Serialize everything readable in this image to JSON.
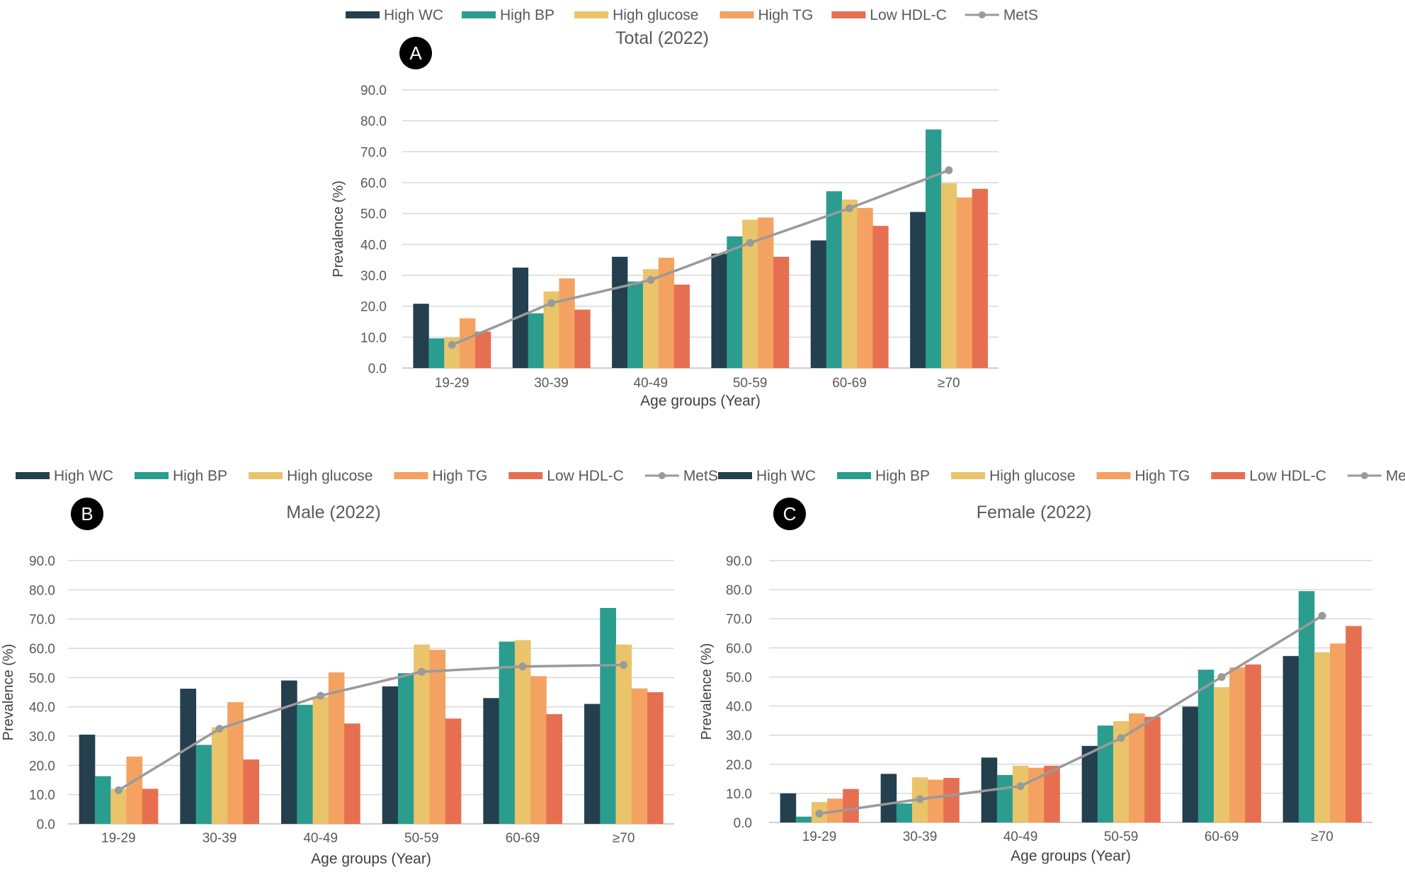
{
  "legend": {
    "items": [
      {
        "label": "High WC",
        "color": "#243f4e",
        "kind": "bar"
      },
      {
        "label": "High BP",
        "color": "#2a9d8f",
        "kind": "bar"
      },
      {
        "label": "High glucose",
        "color": "#e9c46a",
        "kind": "bar"
      },
      {
        "label": "High TG",
        "color": "#f4a261",
        "kind": "bar"
      },
      {
        "label": "Low HDL-C",
        "color": "#e76f51",
        "kind": "bar"
      },
      {
        "label": "MetS",
        "color": "#9a9a9a",
        "kind": "line"
      }
    ]
  },
  "chart_data": [
    {
      "type": "bar",
      "panel": "A",
      "title": "Total (2022)",
      "xlabel": "Age groups (Year)",
      "ylabel": "Prevalence (%)",
      "ylim": [
        0,
        90
      ],
      "yticks": [
        "0.0",
        "10.0",
        "20.0",
        "30.0",
        "40.0",
        "50.0",
        "60.0",
        "70.0",
        "80.0",
        "90.0"
      ],
      "categories": [
        "19-29",
        "30-39",
        "40-49",
        "50-59",
        "60-69",
        "≥70"
      ],
      "series": [
        {
          "name": "High WC",
          "values": [
            20.8,
            32.5,
            36.0,
            37.0,
            41.3,
            50.5
          ]
        },
        {
          "name": "High BP",
          "values": [
            9.6,
            17.7,
            28.0,
            42.6,
            57.2,
            77.2
          ]
        },
        {
          "name": "High glucose",
          "values": [
            9.9,
            24.8,
            32.0,
            48.0,
            54.5,
            59.8
          ]
        },
        {
          "name": "High TG",
          "values": [
            16.1,
            29.0,
            35.7,
            48.7,
            51.8,
            55.2
          ]
        },
        {
          "name": "Low HDL-C",
          "values": [
            11.8,
            18.9,
            27.0,
            36.0,
            46.0,
            58.0
          ]
        }
      ],
      "line": {
        "name": "MetS",
        "values": [
          7.5,
          21.0,
          28.5,
          40.5,
          51.7,
          64.0
        ]
      }
    },
    {
      "type": "bar",
      "panel": "B",
      "title": "Male (2022)",
      "xlabel": "Age groups (Year)",
      "ylabel": "Prevalence (%)",
      "ylim": [
        0,
        90
      ],
      "yticks": [
        "0.0",
        "10.0",
        "20.0",
        "30.0",
        "40.0",
        "50.0",
        "60.0",
        "70.0",
        "80.0",
        "90.0"
      ],
      "categories": [
        "19-29",
        "30-39",
        "40-49",
        "50-59",
        "60-69",
        "≥70"
      ],
      "series": [
        {
          "name": "High WC",
          "values": [
            30.5,
            46.2,
            49.0,
            47.0,
            43.0,
            41.0
          ]
        },
        {
          "name": "High BP",
          "values": [
            16.3,
            27.0,
            40.7,
            51.5,
            62.3,
            73.8
          ]
        },
        {
          "name": "High glucose",
          "values": [
            12.0,
            33.0,
            43.5,
            61.3,
            62.8,
            61.3
          ]
        },
        {
          "name": "High TG",
          "values": [
            23.0,
            41.6,
            51.8,
            59.5,
            50.5,
            46.3
          ]
        },
        {
          "name": "Low HDL-C",
          "values": [
            12.0,
            22.0,
            34.3,
            36.0,
            37.5,
            45.0
          ]
        }
      ],
      "line": {
        "name": "MetS",
        "values": [
          11.5,
          32.5,
          43.8,
          52.0,
          53.8,
          54.3
        ]
      }
    },
    {
      "type": "bar",
      "panel": "C",
      "title": "Female (2022)",
      "xlabel": "Age groups (Year)",
      "ylabel": "Prevalence (%)",
      "ylim": [
        0,
        90
      ],
      "yticks": [
        "0.0",
        "10.0",
        "20.0",
        "30.0",
        "40.0",
        "50.0",
        "60.0",
        "70.0",
        "80.0",
        "90.0"
      ],
      "categories": [
        "19-29",
        "30-39",
        "40-49",
        "50-59",
        "60-69",
        "≥70"
      ],
      "series": [
        {
          "name": "High WC",
          "values": [
            10.0,
            16.7,
            22.3,
            26.3,
            39.8,
            57.2
          ]
        },
        {
          "name": "High BP",
          "values": [
            2.0,
            6.5,
            16.3,
            33.3,
            52.5,
            79.5
          ]
        },
        {
          "name": "High glucose",
          "values": [
            7.0,
            15.5,
            19.5,
            34.8,
            46.5,
            58.5
          ]
        },
        {
          "name": "High TG",
          "values": [
            8.2,
            14.7,
            18.8,
            37.5,
            53.3,
            61.5
          ]
        },
        {
          "name": "Low HDL-C",
          "values": [
            11.5,
            15.3,
            19.5,
            36.3,
            54.3,
            67.5
          ]
        }
      ],
      "line": {
        "name": "MetS",
        "values": [
          3.0,
          8.0,
          12.5,
          29.0,
          50.0,
          71.0
        ]
      }
    }
  ]
}
